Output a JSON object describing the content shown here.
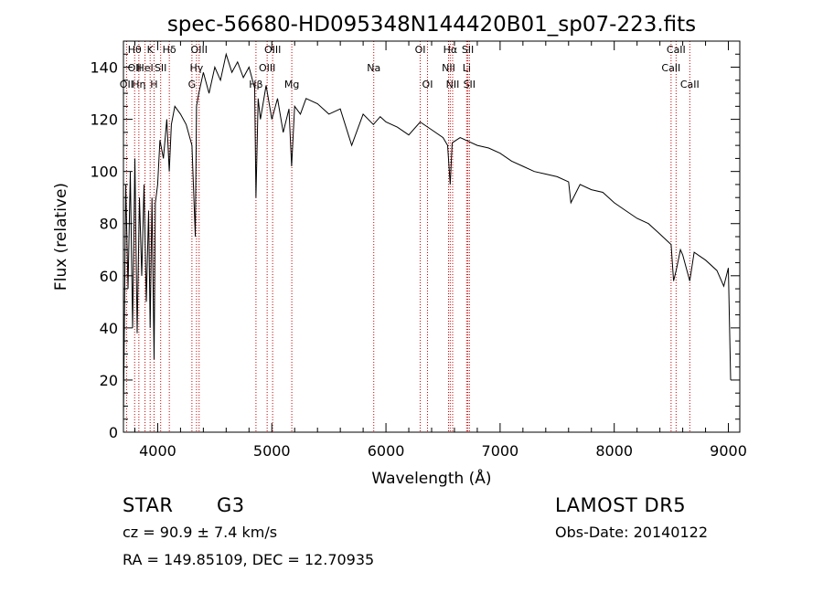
{
  "chart_data": {
    "type": "line",
    "title": "spec-56680-HD095348N144420B01_sp07-223.fits",
    "xlabel": "Wavelength (Å)",
    "ylabel": "Flux (relative)",
    "xlim": [
      3700,
      9100
    ],
    "ylim": [
      0,
      150
    ],
    "xticks": [
      4000,
      5000,
      6000,
      7000,
      8000,
      9000
    ],
    "yticks": [
      0,
      20,
      40,
      60,
      80,
      100,
      120,
      140
    ],
    "grid": false,
    "series": [
      {
        "color": "#000000",
        "x": [
          3700,
          3720,
          3740,
          3760,
          3780,
          3800,
          3820,
          3840,
          3860,
          3880,
          3900,
          3920,
          3934,
          3950,
          3968,
          3980,
          4000,
          4020,
          4050,
          4080,
          4101,
          4120,
          4150,
          4200,
          4250,
          4300,
          4330,
          4340,
          4360,
          4400,
          4450,
          4500,
          4550,
          4600,
          4650,
          4700,
          4750,
          4800,
          4850,
          4861,
          4880,
          4900,
          4950,
          5000,
          5050,
          5100,
          5150,
          5173,
          5200,
          5250,
          5300,
          5400,
          5500,
          5600,
          5700,
          5800,
          5890,
          5950,
          6000,
          6100,
          6200,
          6300,
          6400,
          6500,
          6540,
          6563,
          6580,
          6650,
          6700,
          6800,
          6900,
          7000,
          7100,
          7200,
          7300,
          7400,
          7500,
          7600,
          7620,
          7700,
          7800,
          7900,
          8000,
          8100,
          8200,
          8300,
          8400,
          8498,
          8520,
          8542,
          8580,
          8600,
          8662,
          8700,
          8800,
          8900,
          8960,
          9000,
          9020
        ],
        "y": [
          5,
          95,
          55,
          100,
          40,
          105,
          38,
          90,
          60,
          95,
          50,
          85,
          40,
          90,
          28,
          88,
          95,
          112,
          105,
          120,
          100,
          118,
          125,
          122,
          118,
          110,
          75,
          125,
          130,
          138,
          130,
          140,
          135,
          145,
          138,
          142,
          136,
          140,
          132,
          90,
          128,
          120,
          133,
          120,
          128,
          115,
          124,
          102,
          125,
          122,
          128,
          126,
          122,
          124,
          110,
          122,
          118,
          121,
          119,
          117,
          114,
          119,
          116,
          113,
          110,
          95,
          111,
          113,
          112,
          110,
          109,
          107,
          104,
          102,
          100,
          99,
          98,
          96,
          88,
          95,
          93,
          92,
          88,
          85,
          82,
          80,
          76,
          72,
          58,
          62,
          70,
          68,
          58,
          69,
          66,
          62,
          56,
          63,
          20
        ]
      }
    ],
    "lines": [
      {
        "wavelength": 3727,
        "labels": [
          "OII"
        ],
        "rows": [
          3
        ]
      },
      {
        "wavelength": 3798,
        "labels": [
          "Hθ",
          "OII"
        ],
        "rows": [
          1,
          2
        ]
      },
      {
        "wavelength": 3835,
        "labels": [
          "Hη"
        ],
        "rows": [
          3
        ]
      },
      {
        "wavelength": 3889,
        "labels": [
          "HeI"
        ],
        "rows": [
          2
        ]
      },
      {
        "wavelength": 3934,
        "labels": [
          "K"
        ],
        "rows": [
          1
        ]
      },
      {
        "wavelength": 3968,
        "labels": [
          "H"
        ],
        "rows": [
          3
        ]
      },
      {
        "wavelength": 4026,
        "labels": [
          "SII"
        ],
        "rows": [
          2
        ]
      },
      {
        "wavelength": 4102,
        "labels": [
          "Hδ"
        ],
        "rows": [
          1
        ]
      },
      {
        "wavelength": 4300,
        "labels": [
          "G"
        ],
        "rows": [
          3
        ]
      },
      {
        "wavelength": 4340,
        "labels": [
          "Hγ"
        ],
        "rows": [
          2
        ]
      },
      {
        "wavelength": 4363,
        "labels": [
          "OIII"
        ],
        "rows": [
          1
        ]
      },
      {
        "wavelength": 4861,
        "labels": [
          "Hβ"
        ],
        "rows": [
          3
        ]
      },
      {
        "wavelength": 4959,
        "labels": [
          "OIII"
        ],
        "rows": [
          2
        ]
      },
      {
        "wavelength": 5007,
        "labels": [
          "OIII"
        ],
        "rows": [
          1
        ]
      },
      {
        "wavelength": 5175,
        "labels": [
          "Mg"
        ],
        "rows": [
          3
        ]
      },
      {
        "wavelength": 5893,
        "labels": [
          "Na"
        ],
        "rows": [
          2
        ]
      },
      {
        "wavelength": 6300,
        "labels": [
          "OI"
        ],
        "rows": [
          1
        ]
      },
      {
        "wavelength": 6364,
        "labels": [
          "OI"
        ],
        "rows": [
          3
        ]
      },
      {
        "wavelength": 6548,
        "labels": [
          "NII"
        ],
        "rows": [
          2
        ]
      },
      {
        "wavelength": 6563,
        "labels": [
          "Hα"
        ],
        "rows": [
          1
        ]
      },
      {
        "wavelength": 6584,
        "labels": [
          "NII"
        ],
        "rows": [
          3
        ]
      },
      {
        "wavelength": 6707,
        "labels": [
          "Li"
        ],
        "rows": [
          2
        ]
      },
      {
        "wavelength": 6717,
        "labels": [
          "SII"
        ],
        "rows": [
          1
        ]
      },
      {
        "wavelength": 6731,
        "labels": [
          "SII"
        ],
        "rows": [
          3
        ]
      },
      {
        "wavelength": 8498,
        "labels": [
          "CaII"
        ],
        "rows": [
          2
        ]
      },
      {
        "wavelength": 8542,
        "labels": [
          "CaII"
        ],
        "rows": [
          1
        ]
      },
      {
        "wavelength": 8662,
        "labels": [
          "CaII"
        ],
        "rows": [
          3
        ]
      }
    ],
    "line_color": "#cc0000"
  },
  "info": {
    "object_class": "STAR",
    "subclass": "G3",
    "survey": "LAMOST DR5",
    "redshift": "cz = 90.9 ± 7.4 km/s",
    "obs_date": "Obs-Date: 20140122",
    "coords": "RA = 149.85109, DEC =  12.70935"
  }
}
